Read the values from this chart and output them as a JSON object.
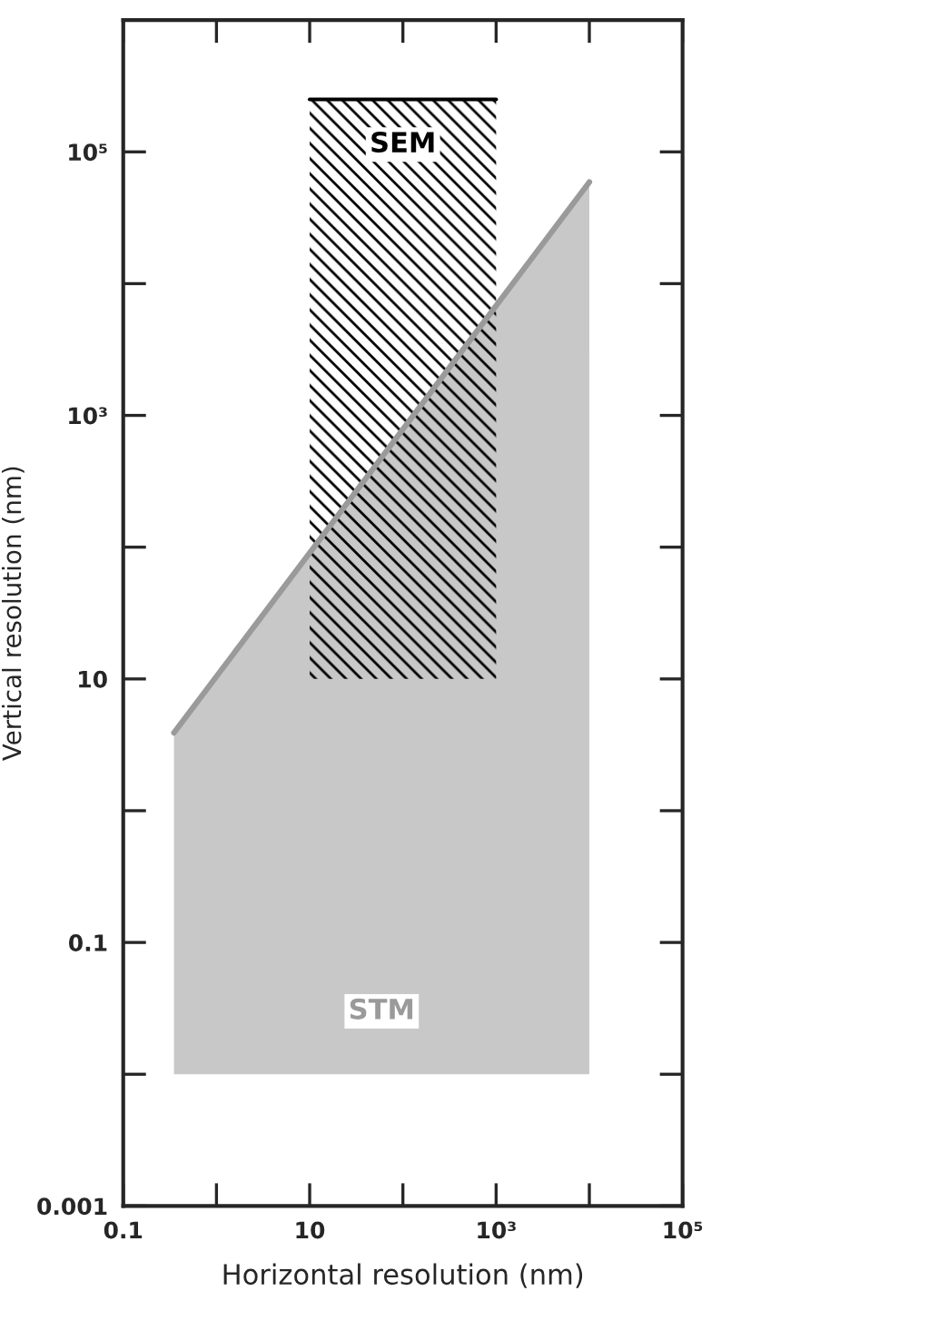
{
  "chart_data": {
    "type": "area",
    "xlabel": "Horizontal resolution (nm)",
    "ylabel": "Vertical resolution (nm)",
    "log": "xy",
    "xlim": [
      0.1,
      100000
    ],
    "ylim": [
      0.001,
      1000000
    ],
    "xticks": [
      {
        "value": 0.1,
        "label": "0.1"
      },
      {
        "value": 1,
        "label": null
      },
      {
        "value": 10,
        "label": "10"
      },
      {
        "value": 100,
        "label": null
      },
      {
        "value": 1000,
        "label": "10³"
      },
      {
        "value": 10000,
        "label": null
      },
      {
        "value": 100000,
        "label": "10⁵"
      }
    ],
    "yticks": [
      {
        "value": 0.001,
        "label": "0.001"
      },
      {
        "value": 0.01,
        "label": null
      },
      {
        "value": 0.1,
        "label": "0.1"
      },
      {
        "value": 1,
        "label": null
      },
      {
        "value": 10,
        "label": "10"
      },
      {
        "value": 100,
        "label": null
      },
      {
        "value": 1000,
        "label": "10³"
      },
      {
        "value": 10000,
        "label": null
      },
      {
        "value": 100000,
        "label": "10⁵"
      }
    ],
    "series": [
      {
        "name": "STM",
        "type": "line",
        "color": "#9a9a9a",
        "x": [
          0.35,
          10000
        ],
        "values": [
          3.9,
          59000
        ],
        "lower": [
          0.01,
          0.01
        ],
        "upper": [
          3.9,
          59000
        ]
      },
      {
        "name": "SEM",
        "type": "line",
        "color": "#000000",
        "x": [
          10,
          1000
        ],
        "values": [
          250000,
          250000
        ],
        "lower": [
          10,
          10
        ],
        "upper": [
          250000,
          250000
        ]
      }
    ]
  }
}
